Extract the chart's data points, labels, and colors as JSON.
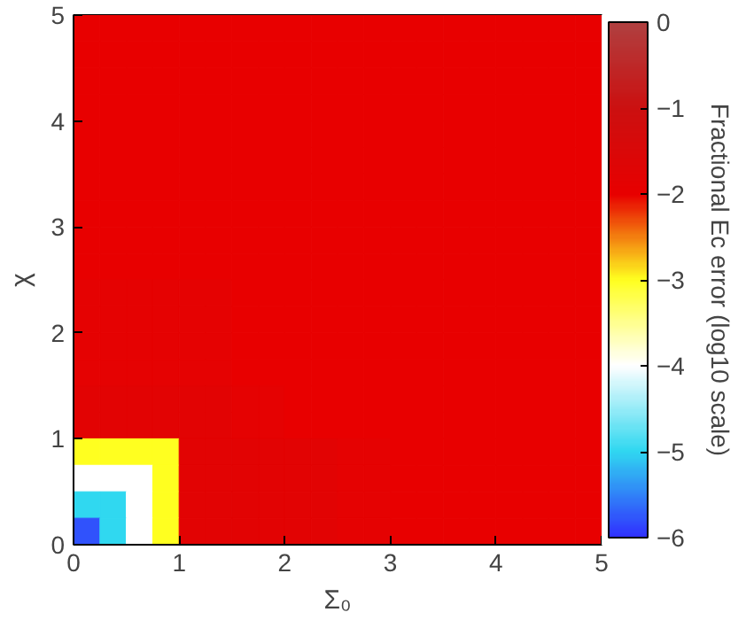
{
  "chart_data": {
    "type": "heatmap",
    "xlabel": "Σ₀",
    "ylabel": "χ",
    "clabel": "Fractional Ec error (log10 scale)",
    "x": [
      0.125,
      0.375,
      0.625,
      0.875,
      1.125,
      1.375,
      1.625,
      1.875,
      2.125,
      2.375,
      2.625,
      2.875,
      3.125,
      3.375,
      3.625,
      3.875,
      4.125,
      4.375,
      4.625,
      4.875
    ],
    "cells": [
      [
        -2,
        -2,
        -2,
        -2,
        -2,
        -2,
        -2,
        -2,
        -2,
        -2,
        -2,
        -2,
        -2,
        -2,
        -2,
        -2,
        -2,
        -2,
        -2,
        -2
      ],
      [
        -2,
        -2,
        -2,
        -2,
        -2,
        -2,
        -2,
        -2,
        -2,
        -2,
        -2,
        -2,
        -2,
        -2,
        -2,
        -2,
        -2,
        -2,
        -2,
        -2
      ],
      [
        -2,
        -2,
        -2,
        -2,
        -2,
        -2,
        -2,
        -2,
        -2,
        -2,
        -2,
        -2,
        -2,
        -2,
        -2,
        -2,
        -2,
        -2,
        -2,
        -2
      ],
      [
        -2,
        -2,
        -2,
        -2,
        -2,
        -2,
        -2,
        -2,
        -2,
        -2,
        -2,
        -2,
        -2,
        -2,
        -2,
        -2,
        -2,
        -2,
        -2,
        -2
      ],
      [
        -2,
        -2,
        -2,
        -2,
        -2,
        -2,
        -2,
        -2,
        -2,
        -2,
        -2,
        -2,
        -2,
        -2,
        -2,
        -2,
        -2,
        -2,
        -2,
        -2
      ],
      [
        -2,
        -2,
        -2,
        -2,
        -2,
        -2,
        -2,
        -2,
        -2,
        -2,
        -2,
        -2,
        -2,
        -2,
        -2,
        -2,
        -2,
        -2,
        -2,
        -2
      ],
      [
        -2,
        -2,
        -2,
        -2,
        -2,
        -2,
        -2,
        -2,
        -2,
        -2,
        -2,
        -2,
        -2,
        -2,
        -2,
        -2,
        -2,
        -2,
        -2,
        -2
      ],
      [
        -2,
        -2,
        -2,
        -2,
        -2,
        -2,
        -2,
        -2,
        -2,
        -2,
        -2,
        -2,
        -2,
        -2,
        -2,
        -2,
        -2,
        -2,
        -2,
        -2
      ],
      [
        -2,
        -2,
        -2,
        -2,
        -2,
        -2,
        -2,
        -2,
        -2,
        -2,
        -2,
        -2,
        -2,
        -2,
        -2,
        -2,
        -2,
        -2,
        -2,
        -2
      ],
      [
        -2,
        -2,
        -2,
        -2,
        -2,
        -2,
        -2,
        -2,
        -2,
        -2,
        -2,
        -2,
        -2,
        -2,
        -2,
        -2,
        -2,
        -2,
        -2,
        -2
      ],
      [
        -1.9,
        -1.9,
        -1.9,
        -1.9,
        -1.9,
        -1.9,
        -2,
        -2,
        -2,
        -2,
        -2,
        -2,
        -2,
        -2,
        -2,
        -2,
        -2,
        -2,
        -2,
        -2
      ],
      [
        -1.9,
        -1.9,
        -1.9,
        -1.9,
        -1.9,
        -1.9,
        -2,
        -2,
        -2,
        -2,
        -2,
        -2,
        -2,
        -2,
        -2,
        -2,
        -2,
        -2,
        -2,
        -2
      ],
      [
        -1.9,
        -1.9,
        -1.9,
        -1.9,
        -1.9,
        -1.9,
        -2,
        -2,
        -2,
        -2,
        -2,
        -2,
        -2,
        -2,
        -2,
        -2,
        -2,
        -2,
        -2,
        -2
      ],
      [
        -1.9,
        -1.9,
        -1.9,
        -1.9,
        -1.9,
        -1.9,
        -2,
        -2,
        -2,
        -2,
        -2,
        -2,
        -2,
        -2,
        -2,
        -2,
        -2,
        -2,
        -2,
        -2
      ],
      [
        -1.8,
        -1.8,
        -1.8,
        -1.8,
        -1.8,
        -1.8,
        -1.9,
        -1.9,
        -2,
        -2,
        -2,
        -2,
        -2,
        -2,
        -2,
        -2,
        -2,
        -2,
        -2,
        -2
      ],
      [
        -1.8,
        -1.8,
        -1.8,
        -1.8,
        -1.8,
        -1.8,
        -1.9,
        -1.9,
        -2,
        -2,
        -2,
        -2,
        -2,
        -2,
        -2,
        -2,
        -2,
        -2,
        -2,
        -2
      ],
      [
        -3,
        -3,
        -3,
        -3,
        -1.8,
        -1.8,
        -1.8,
        -1.8,
        -1.8,
        -1.8,
        -1.9,
        -1.9,
        -2,
        -2,
        -2,
        -2,
        -2,
        -2,
        -2,
        -2
      ],
      [
        -4,
        -4,
        -4,
        -3,
        -1.8,
        -1.8,
        -1.8,
        -1.8,
        -1.8,
        -1.8,
        -1.9,
        -1.9,
        -2,
        -2,
        -2,
        -2,
        -2,
        -2,
        -2,
        -2
      ],
      [
        -5,
        -5,
        -4,
        -3,
        -1.8,
        -1.8,
        -1.8,
        -1.8,
        -1.8,
        -1.8,
        -1.9,
        -1.9,
        -2,
        -2,
        -2,
        -2,
        -2,
        -2,
        -2,
        -2
      ],
      [
        -5.8,
        -5,
        -4,
        -3,
        -1.8,
        -1.8,
        -1.8,
        -1.8,
        -1.8,
        -1.8,
        -1.9,
        -1.9,
        -2,
        -2,
        -2,
        -2,
        -2,
        -2,
        -2,
        -2
      ]
    ],
    "colors": [
      "#3030ff",
      "#30d8f0",
      "#ffffff",
      "#ffff20",
      "#e80000",
      "#cc1010",
      "#b04040"
    ],
    "xlim": [
      0,
      5
    ],
    "ylim": [
      0,
      5
    ],
    "xticks": [
      0,
      1,
      2,
      3,
      4,
      5
    ],
    "yticks": [
      0,
      1,
      2,
      3,
      4,
      5
    ],
    "clim": [
      -6,
      0
    ],
    "cticks": [
      -6,
      -5,
      -4,
      -3,
      -2,
      -1,
      0
    ]
  }
}
